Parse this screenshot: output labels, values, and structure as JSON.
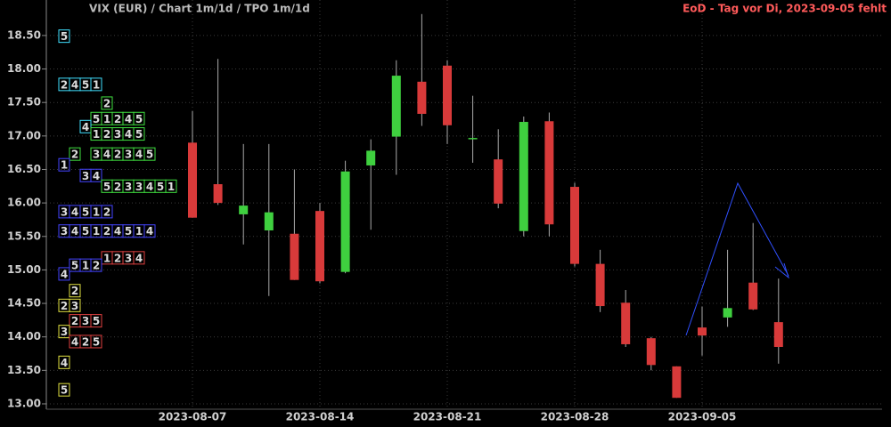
{
  "chart_data": {
    "type": "candlestick",
    "title": "VIX (EUR) /  Chart 1m/1d / TPO 1m/1d",
    "annotation": "EoD - Tag vor Di, 2023-09-05 fehlt",
    "categories": [
      "2023-08-07",
      null,
      null,
      null,
      null,
      "2023-08-14",
      null,
      null,
      null,
      null,
      "2023-08-21",
      null,
      null,
      null,
      null,
      "2023-08-28",
      null,
      null,
      null,
      null,
      "2023-09-05",
      null,
      null,
      null
    ],
    "open": [
      16.9,
      16.28,
      15.83,
      15.59,
      15.54,
      15.88,
      14.97,
      16.56,
      16.99,
      17.81,
      18.05,
      16.97,
      16.65,
      15.58,
      17.22,
      16.24,
      15.09,
      14.51,
      13.98,
      13.56,
      14.14,
      14.29,
      14.81,
      14.22
    ],
    "high": [
      17.37,
      18.15,
      16.88,
      16.88,
      16.5,
      16.0,
      16.63,
      16.95,
      18.13,
      18.82,
      18.13,
      17.6,
      17.1,
      17.29,
      17.35,
      16.3,
      15.3,
      14.7,
      14.0,
      13.56,
      14.45,
      15.3,
      15.7,
      14.87
    ],
    "low": [
      15.78,
      15.97,
      15.38,
      14.61,
      14.85,
      14.8,
      14.95,
      15.6,
      16.42,
      17.15,
      16.88,
      16.6,
      15.92,
      15.5,
      15.5,
      15.05,
      14.37,
      13.85,
      13.5,
      13.09,
      13.72,
      14.15,
      14.4,
      13.6
    ],
    "close": [
      15.78,
      16.0,
      15.96,
      15.86,
      14.85,
      14.83,
      16.47,
      16.78,
      17.9,
      17.33,
      17.16,
      16.97,
      15.99,
      17.21,
      15.68,
      15.09,
      14.46,
      13.89,
      13.58,
      13.09,
      14.02,
      14.43,
      14.41,
      13.85
    ],
    "up_color": "#3fd03f",
    "down_color": "#d83a3a",
    "ylim": [
      12.92,
      19.03
    ],
    "yticks": [
      {
        "value": 13.0,
        "label": "13.00"
      },
      {
        "value": 13.5,
        "label": "13.50"
      },
      {
        "value": 14.0,
        "label": "14.00"
      },
      {
        "value": 14.5,
        "label": "14.50"
      },
      {
        "value": 15.0,
        "label": "15.00"
      },
      {
        "value": 15.5,
        "label": "15.50"
      },
      {
        "value": 16.0,
        "label": "16.00"
      },
      {
        "value": 16.5,
        "label": "16.50"
      },
      {
        "value": 17.0,
        "label": "17.00"
      },
      {
        "value": 17.5,
        "label": "17.50"
      },
      {
        "value": 18.0,
        "label": "18.00"
      },
      {
        "value": 18.5,
        "label": "18.50"
      }
    ],
    "grid": true,
    "tpo": [
      {
        "price": 18.49,
        "color": "#40e0ff",
        "letters": [
          "5"
        ]
      },
      {
        "price": 17.77,
        "color": "#40e0ff",
        "letters": [
          "2",
          "4",
          "5",
          "1"
        ]
      },
      {
        "price": 17.49,
        "color": "#40e040",
        "letters": [
          null,
          null,
          null,
          null,
          "2"
        ]
      },
      {
        "price": 17.26,
        "color": "#40e040",
        "letters": [
          null,
          null,
          null,
          "5",
          "1",
          "2",
          "4",
          "5"
        ]
      },
      {
        "price": 17.14,
        "color": "#40e0ff",
        "letters": [
          null,
          null,
          "4"
        ]
      },
      {
        "price": 17.03,
        "color": "#40e040",
        "letters": [
          null,
          null,
          null,
          "1",
          "2",
          "3",
          "4",
          "5"
        ]
      },
      {
        "price": 16.73,
        "color": "#40e040",
        "letters": [
          null,
          "2",
          null,
          "3",
          "4",
          "2",
          "3",
          "4",
          "5"
        ]
      },
      {
        "price": 16.57,
        "color": "#4444ff",
        "letters": [
          "1"
        ]
      },
      {
        "price": 16.41,
        "color": "#4444ff",
        "letters": [
          null,
          null,
          "3",
          "4"
        ]
      },
      {
        "price": 16.25,
        "color": "#40e040",
        "letters": [
          null,
          null,
          null,
          null,
          "5",
          "2",
          "3",
          "3",
          "4",
          "5",
          "1"
        ]
      },
      {
        "price": 15.87,
        "color": "#4444ff",
        "letters": [
          "3",
          "4",
          "5",
          "1",
          "2"
        ]
      },
      {
        "price": 15.58,
        "color": "#4444ff",
        "letters": [
          "3",
          "4",
          "5",
          "1",
          "2",
          "4",
          "5",
          "1",
          "4"
        ]
      },
      {
        "price": 15.18,
        "color": "#e04040",
        "letters": [
          null,
          null,
          null,
          null,
          "1",
          "2",
          "3",
          "4"
        ]
      },
      {
        "price": 15.07,
        "color": "#4444ff",
        "letters": [
          null,
          "5",
          "1",
          "2"
        ]
      },
      {
        "price": 14.94,
        "color": "#4444ff",
        "letters": [
          "4"
        ]
      },
      {
        "price": 14.69,
        "color": "#e0e040",
        "letters": [
          null,
          "2"
        ]
      },
      {
        "price": 14.47,
        "color": "#e0e040",
        "letters": [
          "2",
          "3"
        ]
      },
      {
        "price": 14.24,
        "color": "#e04040",
        "letters": [
          null,
          "2",
          "3",
          "5"
        ]
      },
      {
        "price": 14.08,
        "color": "#e0e040",
        "letters": [
          "3"
        ]
      },
      {
        "price": 13.93,
        "color": "#e04040",
        "letters": [
          null,
          "4",
          "2",
          "5"
        ]
      },
      {
        "price": 13.62,
        "color": "#e0e040",
        "letters": [
          "4"
        ]
      },
      {
        "price": 13.21,
        "color": "#e0e040",
        "letters": [
          "5"
        ]
      }
    ]
  }
}
